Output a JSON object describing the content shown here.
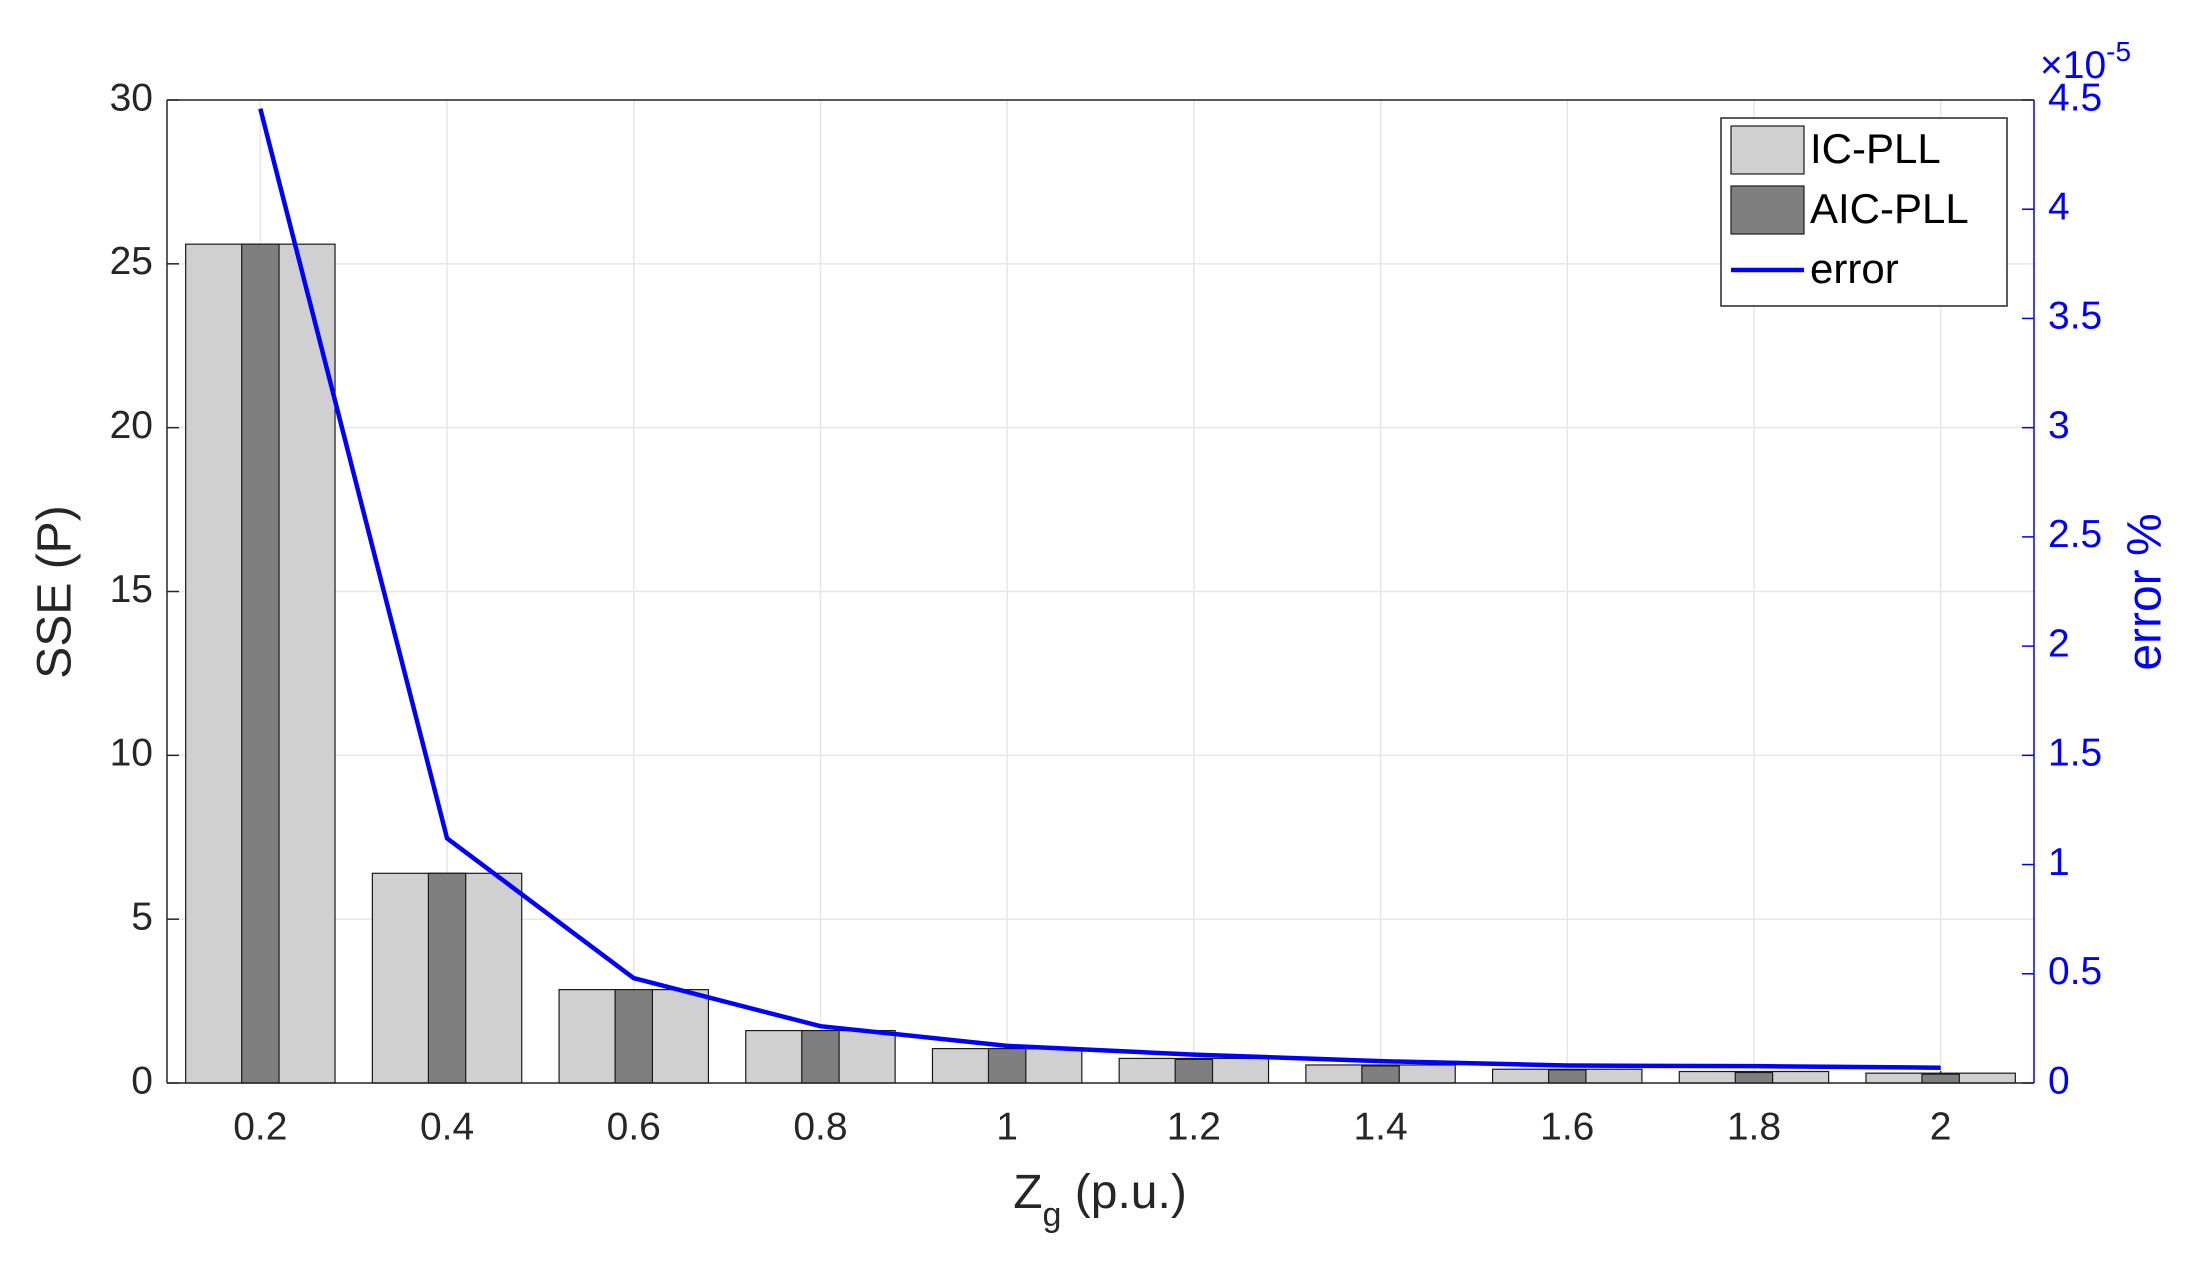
{
  "chart_data": {
    "type": "bar",
    "xlabel": {
      "main": "Z",
      "subscript": "g",
      "suffix": " (p.u.)"
    },
    "ylabel": "SSE (P)",
    "y2label": "error %",
    "y2_multiplier": {
      "base": "×10",
      "exponent": "-5"
    },
    "categories": [
      "0.2",
      "0.4",
      "0.6",
      "0.8",
      "1",
      "1.2",
      "1.4",
      "1.6",
      "1.8",
      "2"
    ],
    "series": [
      {
        "name": "IC-PLL",
        "type": "bar",
        "color": "#d0d0d0",
        "values": [
          25.6,
          6.4,
          2.85,
          1.6,
          1.05,
          0.75,
          0.55,
          0.42,
          0.35,
          0.3
        ]
      },
      {
        "name": "AIC-PLL",
        "type": "bar",
        "color": "#7f7f7f",
        "values": [
          25.6,
          6.4,
          2.85,
          1.6,
          1.05,
          0.72,
          0.52,
          0.4,
          0.32,
          0.27
        ]
      },
      {
        "name": "error",
        "type": "line",
        "axis": "y2",
        "color": "#0000ff",
        "values": [
          4.46,
          1.12,
          0.48,
          0.26,
          0.17,
          0.13,
          0.1,
          0.08,
          0.077,
          0.07
        ]
      }
    ],
    "ylim": [
      0,
      30
    ],
    "yticks": [
      0,
      5,
      10,
      15,
      20,
      25,
      30
    ],
    "y2lim": [
      0,
      4.5
    ],
    "y2ticks": [
      0,
      0.5,
      1,
      1.5,
      2,
      2.5,
      3,
      3.5,
      4,
      4.5
    ],
    "grid": true,
    "legend": "northeast",
    "y2color": "#0000ff"
  }
}
